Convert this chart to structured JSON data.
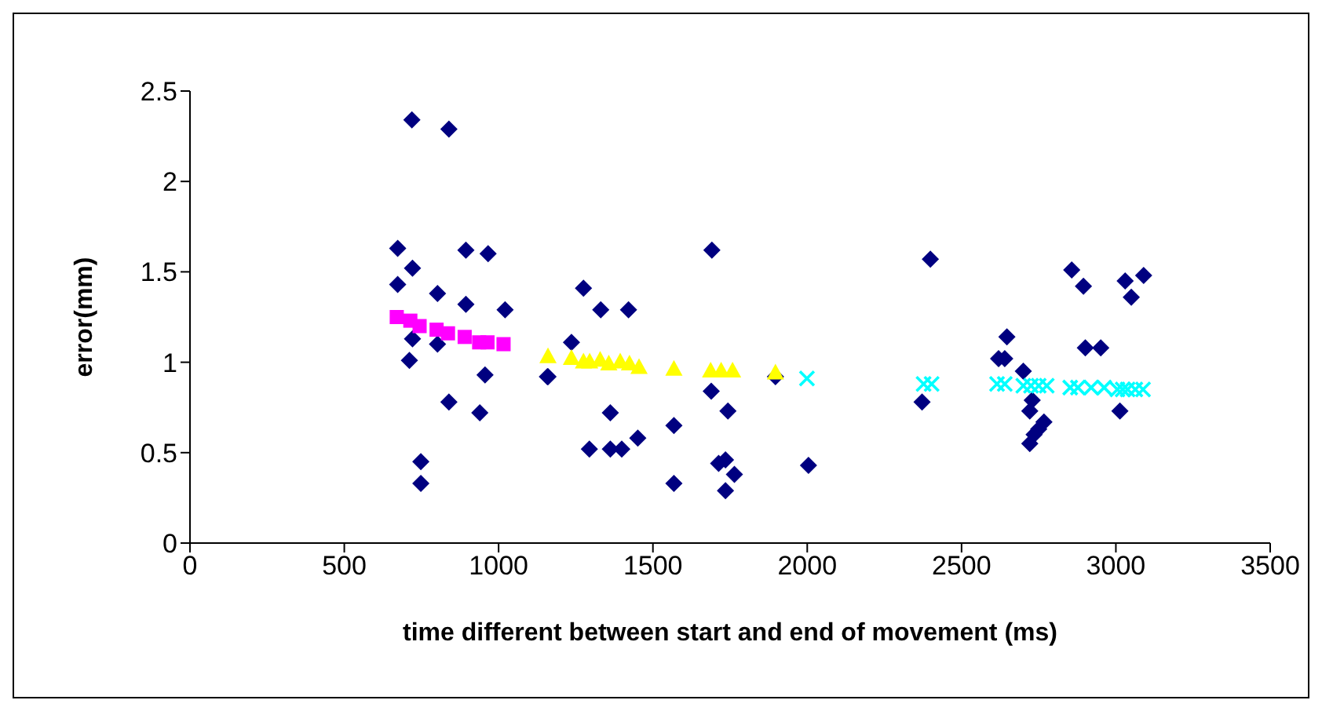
{
  "chart_data": {
    "type": "scatter",
    "xlabel": "time different between start and end of movement (ms)",
    "ylabel": "error(mm)",
    "xlim": [
      0,
      3500
    ],
    "xticks": [
      0,
      500,
      1000,
      1500,
      2000,
      2500,
      3000,
      3500
    ],
    "ylim": [
      0,
      2.5
    ],
    "yticks": [
      0,
      0.5,
      1,
      1.5,
      2,
      2.5
    ],
    "grid": false,
    "legend": false,
    "series": [
      {
        "color": "#000080",
        "marker": "diamond",
        "x": [
          719,
          839,
          673,
          721,
          673,
          894,
          966,
          802,
          894,
          1021,
          721,
          802,
          711,
          956,
          1158,
          1236,
          839,
          939,
          748,
          748,
          1691,
          1275,
          1331,
          1421,
          1160,
          1689,
          1743,
          1362,
          1568,
          1294,
          1362,
          1399,
          1451,
          1713,
          1735,
          1764,
          1568,
          1735,
          2004,
          1897,
          2399,
          2372,
          2857,
          2895,
          3030,
          3050,
          3090,
          2647,
          2620,
          2640,
          2901,
          2951,
          2700,
          2729,
          2721,
          2767,
          2750,
          2735,
          2721,
          3013
        ],
        "values": [
          2.34,
          2.29,
          1.63,
          1.52,
          1.43,
          1.62,
          1.6,
          1.38,
          1.32,
          1.29,
          1.13,
          1.1,
          1.01,
          0.93,
          0.92,
          1.11,
          0.78,
          0.72,
          0.45,
          0.33,
          1.62,
          1.41,
          1.29,
          1.29,
          0.92,
          0.84,
          0.73,
          0.72,
          0.65,
          0.52,
          0.52,
          0.52,
          0.58,
          0.44,
          0.46,
          0.38,
          0.33,
          0.29,
          0.43,
          0.92,
          1.57,
          0.78,
          1.51,
          1.42,
          1.45,
          1.36,
          1.48,
          1.14,
          1.02,
          1.02,
          1.08,
          1.08,
          0.95,
          0.79,
          0.73,
          0.67,
          0.63,
          0.6,
          0.55,
          0.73
        ]
      },
      {
        "color": "#ff00ff",
        "marker": "square",
        "x": [
          670,
          714,
          744,
          799,
          836,
          890,
          937,
          964,
          1016
        ],
        "values": [
          1.25,
          1.23,
          1.2,
          1.18,
          1.16,
          1.14,
          1.11,
          1.11,
          1.1
        ]
      },
      {
        "color": "#ffff00",
        "marker": "triangle",
        "x": [
          1160,
          1236,
          1275,
          1295,
          1329,
          1357,
          1394,
          1424,
          1455,
          1568,
          1687,
          1721,
          1758,
          1897
        ],
        "values": [
          1.03,
          1.02,
          1.0,
          1.0,
          1.01,
          0.99,
          1.0,
          0.99,
          0.97,
          0.96,
          0.95,
          0.95,
          0.95,
          0.94
        ]
      },
      {
        "color": "#00ffff",
        "marker": "cross",
        "x": [
          1999,
          2377,
          2403,
          2615,
          2640,
          2700,
          2725,
          2750,
          2776,
          2852,
          2877,
          2920,
          2962,
          3005,
          3022,
          3038,
          3063,
          3088
        ],
        "values": [
          0.91,
          0.88,
          0.88,
          0.88,
          0.88,
          0.87,
          0.87,
          0.87,
          0.87,
          0.86,
          0.86,
          0.86,
          0.86,
          0.85,
          0.85,
          0.85,
          0.85,
          0.85
        ]
      }
    ]
  }
}
